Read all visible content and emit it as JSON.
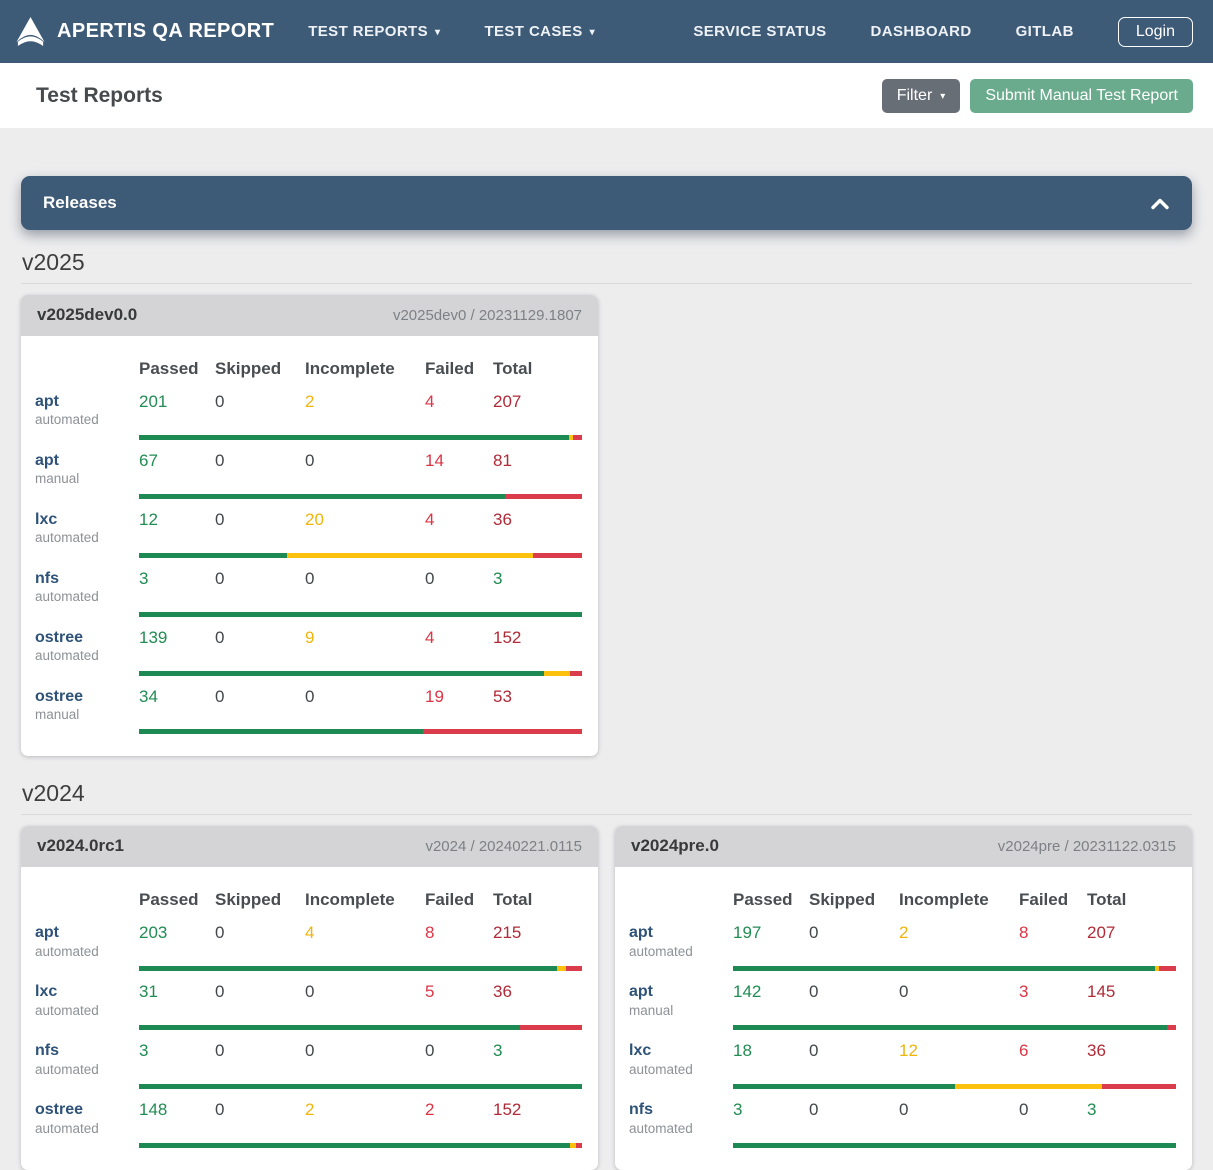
{
  "navbar": {
    "brand": "APERTIS QA REPORT",
    "menus": [
      {
        "label": "TEST REPORTS"
      },
      {
        "label": "TEST CASES"
      }
    ],
    "links": [
      "SERVICE STATUS",
      "DASHBOARD",
      "GITLAB"
    ],
    "login_label": "Login"
  },
  "page": {
    "title": "Test Reports",
    "filter_label": "Filter",
    "submit_label": "Submit Manual Test Report"
  },
  "releases_panel": {
    "title": "Releases"
  },
  "table_headers": [
    "Passed",
    "Skipped",
    "Incomplete",
    "Failed",
    "Total"
  ],
  "colors": {
    "navbar_bg": "#3d5a76",
    "page_bg": "#ededee",
    "card_header_bg": "#d4d4d6",
    "passed_green": "#1e8a53",
    "skipped_teal": "#5bc0de",
    "incomplete_yellow": "#fcc10c",
    "failed_red": "#db3c4c",
    "total_failed_text": "#b02a37",
    "link_blue": "#2f5378",
    "filter_button_gray": "#686e76",
    "submit_button_green": "#6aab8d"
  },
  "sections": [
    {
      "heading": "v2025",
      "cards": [
        {
          "title": "v2025dev0.0",
          "subtitle": "v2025dev0 / 20231129.1807",
          "rows": [
            {
              "name": "apt",
              "mode": "automated",
              "passed": 201,
              "skipped": 0,
              "incomplete": 2,
              "failed": 4,
              "total": 207
            },
            {
              "name": "apt",
              "mode": "manual",
              "passed": 67,
              "skipped": 0,
              "incomplete": 0,
              "failed": 14,
              "total": 81
            },
            {
              "name": "lxc",
              "mode": "automated",
              "passed": 12,
              "skipped": 0,
              "incomplete": 20,
              "failed": 4,
              "total": 36
            },
            {
              "name": "nfs",
              "mode": "automated",
              "passed": 3,
              "skipped": 0,
              "incomplete": 0,
              "failed": 0,
              "total": 3
            },
            {
              "name": "ostree",
              "mode": "automated",
              "passed": 139,
              "skipped": 0,
              "incomplete": 9,
              "failed": 4,
              "total": 152
            },
            {
              "name": "ostree",
              "mode": "manual",
              "passed": 34,
              "skipped": 0,
              "incomplete": 0,
              "failed": 19,
              "total": 53
            }
          ]
        }
      ]
    },
    {
      "heading": "v2024",
      "cards": [
        {
          "title": "v2024.0rc1",
          "subtitle": "v2024 / 20240221.0115",
          "rows": [
            {
              "name": "apt",
              "mode": "automated",
              "passed": 203,
              "skipped": 0,
              "incomplete": 4,
              "failed": 8,
              "total": 215
            },
            {
              "name": "lxc",
              "mode": "automated",
              "passed": 31,
              "skipped": 0,
              "incomplete": 0,
              "failed": 5,
              "total": 36
            },
            {
              "name": "nfs",
              "mode": "automated",
              "passed": 3,
              "skipped": 0,
              "incomplete": 0,
              "failed": 0,
              "total": 3
            },
            {
              "name": "ostree",
              "mode": "automated",
              "passed": 148,
              "skipped": 0,
              "incomplete": 2,
              "failed": 2,
              "total": 152
            }
          ]
        },
        {
          "title": "v2024pre.0",
          "subtitle": "v2024pre / 20231122.0315",
          "rows": [
            {
              "name": "apt",
              "mode": "automated",
              "passed": 197,
              "skipped": 0,
              "incomplete": 2,
              "failed": 8,
              "total": 207
            },
            {
              "name": "apt",
              "mode": "manual",
              "passed": 142,
              "skipped": 0,
              "incomplete": 0,
              "failed": 3,
              "total": 145
            },
            {
              "name": "lxc",
              "mode": "automated",
              "passed": 18,
              "skipped": 0,
              "incomplete": 12,
              "failed": 6,
              "total": 36
            },
            {
              "name": "nfs",
              "mode": "automated",
              "passed": 3,
              "skipped": 0,
              "incomplete": 0,
              "failed": 0,
              "total": 3
            }
          ]
        }
      ]
    }
  ]
}
